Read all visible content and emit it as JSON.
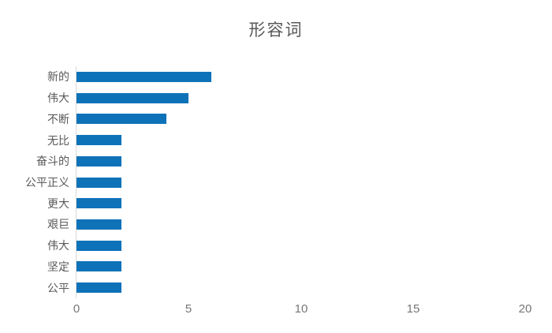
{
  "chart_data": {
    "type": "bar",
    "orientation": "horizontal",
    "title": "形容词",
    "categories": [
      "新的",
      "伟大",
      "不断",
      "无比",
      "奋斗的",
      "公平正义",
      "更大",
      "艰巨",
      "伟大",
      "坚定",
      "公平"
    ],
    "values": [
      6,
      5,
      4,
      2,
      2,
      2,
      2,
      2,
      2,
      2,
      2
    ],
    "xlabel": "",
    "ylabel": "",
    "xlim": [
      0,
      20
    ],
    "x_ticks": [
      0,
      5,
      10,
      15,
      20
    ],
    "grid": false,
    "legend": false,
    "colors": {
      "bar": "#0E72B9",
      "title_text": "#595959",
      "category_text": "#595959",
      "tick_text": "#767676",
      "axis_line": "#D9D9D9",
      "background": "#FFFFFF"
    }
  }
}
